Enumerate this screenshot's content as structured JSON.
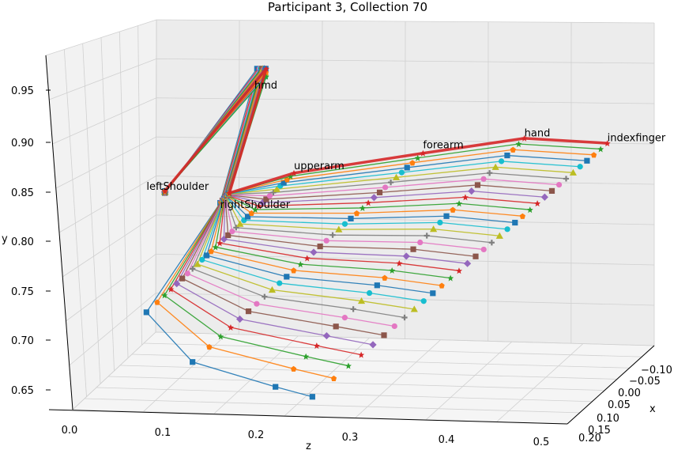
{
  "chart_data": {
    "type": "line",
    "title": "Participant 3, Collection 70",
    "projection": "3d",
    "axes": {
      "x": {
        "label": "x",
        "ticks": [
          "−0.10",
          "−0.05",
          "0.00",
          "0.05",
          "0.10",
          "0.15",
          "0.20"
        ]
      },
      "y": {
        "label": "y",
        "ticks": [
          "0.65",
          "0.70",
          "0.75",
          "0.80",
          "0.85",
          "0.90",
          "0.95"
        ]
      },
      "z": {
        "label": "z",
        "ticks": [
          "0.0",
          "0.1",
          "0.2",
          "0.3",
          "0.4",
          "0.5"
        ]
      }
    },
    "grid": true,
    "joint_labels": [
      "hmd",
      "leftShoulder",
      "rightShoulder",
      "upperarm",
      "forearm",
      "hand",
      "indexfinger"
    ],
    "frames_note": "skeleton frames overlaid, progressing from arm lowered (toward waist) to arm raised and extended",
    "pose_start": {
      "hmd": {
        "z": 0.2,
        "y": 0.965
      },
      "leftShoulder": {
        "z": 0.1,
        "y": 0.84
      },
      "rightShoulder": {
        "z": 0.16,
        "y": 0.83
      },
      "elbow": {
        "z": 0.08,
        "y": 0.72
      },
      "wrist": {
        "z": 0.13,
        "y": 0.67
      },
      "hand": {
        "z": 0.22,
        "y": 0.645
      }
    },
    "pose_end": {
      "upperarm": {
        "z": 0.24,
        "y": 0.86
      },
      "forearm": {
        "z": 0.38,
        "y": 0.88
      },
      "hand": {
        "z": 0.49,
        "y": 0.895
      },
      "indexfinger": {
        "z": 0.58,
        "y": 0.89
      }
    }
  }
}
